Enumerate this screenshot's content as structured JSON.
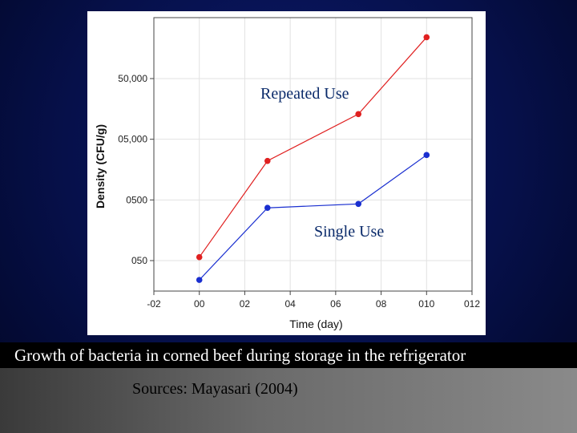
{
  "caption": "Growth of bacteria in corned beef during storage in the refrigerator",
  "source": "Sources: Mayasari (2004)",
  "colors": {
    "repeated": "#e02020",
    "single": "#1a2fd0"
  },
  "chart_data": {
    "type": "line",
    "xlabel": "Time (day)",
    "ylabel": "Density (CFU/g)",
    "x_ticks": [
      "-02",
      "00",
      "02",
      "04",
      "06",
      "08",
      "010",
      "012"
    ],
    "x_tick_values": [
      -2,
      0,
      2,
      4,
      6,
      8,
      10,
      12
    ],
    "y_ticks": [
      "050",
      "0500",
      "05,000",
      "50,000"
    ],
    "y_tick_values": [
      50,
      500,
      5000,
      50000
    ],
    "y_scale": "log",
    "xlim": [
      -2,
      12
    ],
    "grid": true,
    "series": [
      {
        "name": "Repeated Use",
        "x": [
          0,
          3,
          7,
          10
        ],
        "y": [
          57,
          2200,
          13000,
          240000
        ]
      },
      {
        "name": "Single Use",
        "x": [
          0,
          3,
          7,
          10
        ],
        "y": [
          24,
          370,
          430,
          2750
        ]
      }
    ]
  }
}
